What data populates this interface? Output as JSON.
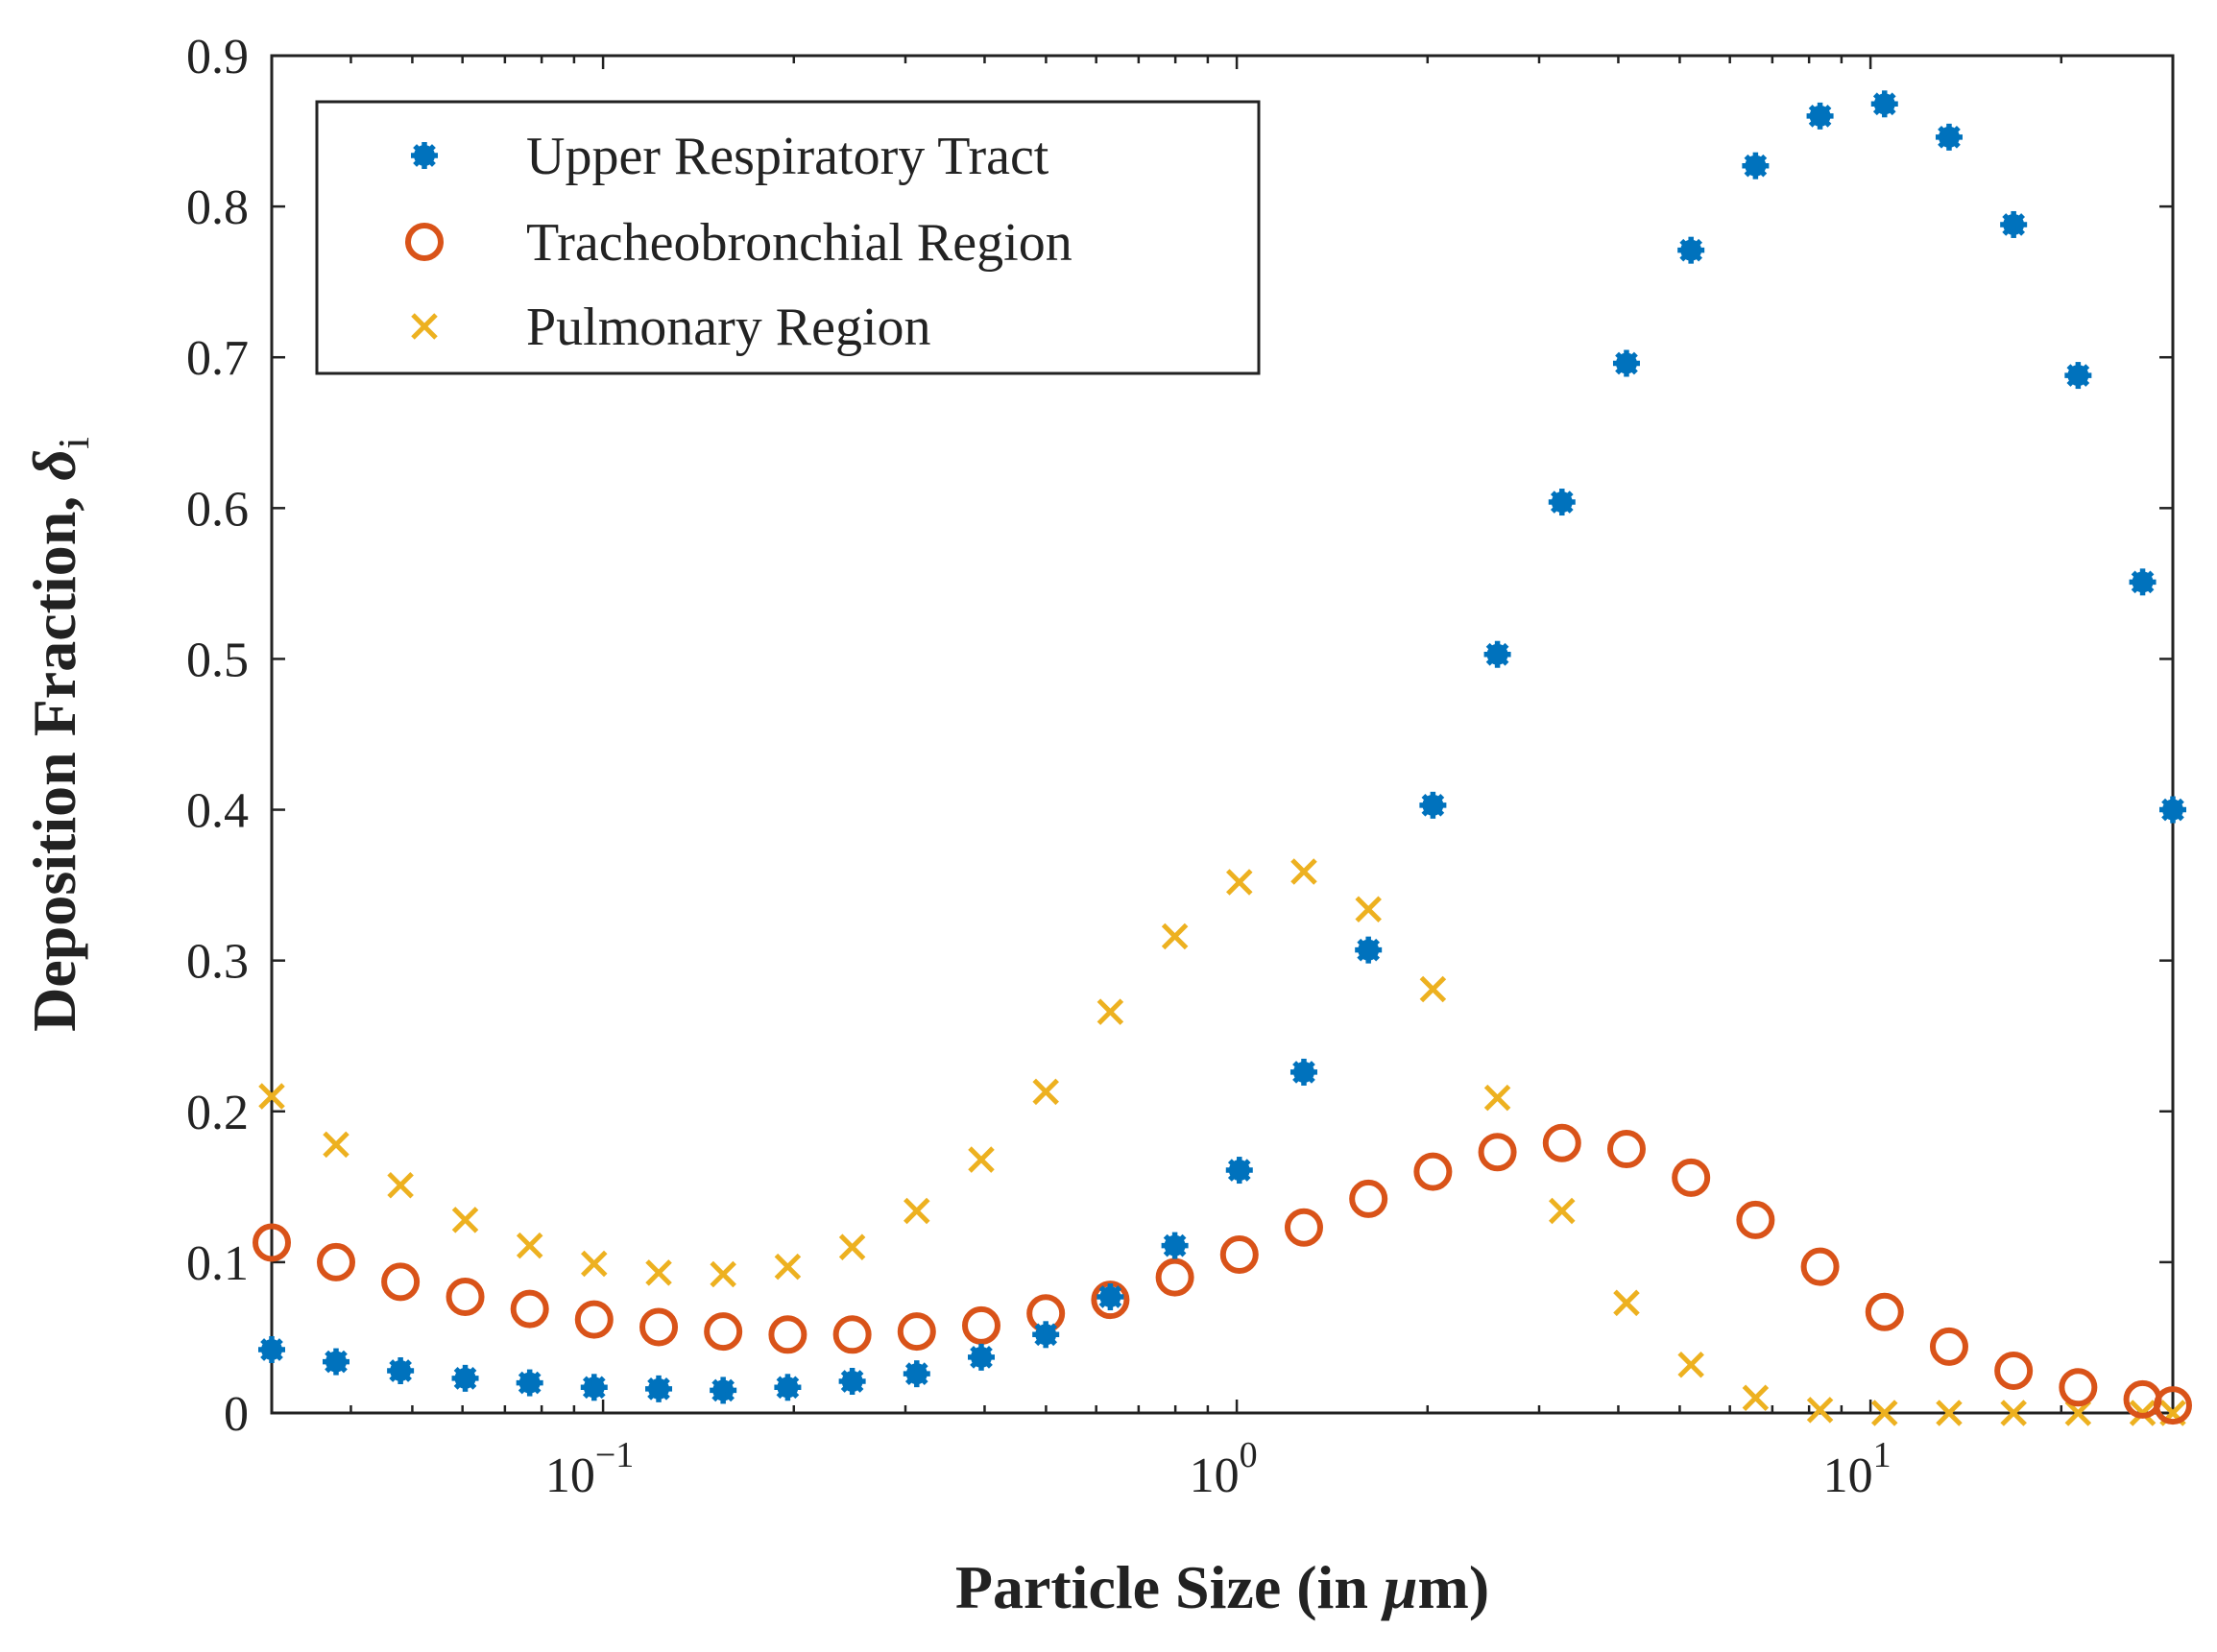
{
  "chart_data": {
    "type": "scatter",
    "xscale": "log",
    "xlim": [
      0.03,
      30
    ],
    "ylim": [
      0,
      0.9
    ],
    "xlabel": {
      "prefix": "Particle Size (in ",
      "mu": "μ",
      "suffix": "m)"
    },
    "ylabel": {
      "main": "Deposition Fraction, ",
      "symbol": "δ",
      "sub": "i"
    },
    "yticks": [
      {
        "value": 0,
        "label": "0"
      },
      {
        "value": 0.1,
        "label": "0.1"
      },
      {
        "value": 0.2,
        "label": "0.2"
      },
      {
        "value": 0.3,
        "label": "0.3"
      },
      {
        "value": 0.4,
        "label": "0.4"
      },
      {
        "value": 0.5,
        "label": "0.5"
      },
      {
        "value": 0.6,
        "label": "0.6"
      },
      {
        "value": 0.7,
        "label": "0.7"
      },
      {
        "value": 0.8,
        "label": "0.8"
      },
      {
        "value": 0.9,
        "label": "0.9"
      }
    ],
    "xticks": [
      {
        "value": 0.1,
        "base": "10",
        "exp": "−1"
      },
      {
        "value": 1,
        "base": "10",
        "exp": "0"
      },
      {
        "value": 10,
        "base": "10",
        "exp": "1"
      }
    ],
    "x": [
      0.03,
      0.0379,
      0.0479,
      0.0606,
      0.0766,
      0.0968,
      0.1224,
      0.1547,
      0.1956,
      0.2473,
      0.3126,
      0.3952,
      0.4996,
      0.6316,
      0.7985,
      1.0094,
      1.2761,
      1.6133,
      2.0395,
      2.5783,
      3.2595,
      4.1207,
      5.2094,
      6.5857,
      8.3256,
      10.525,
      13.306,
      16.821,
      21.265,
      26.883,
      30
    ],
    "series": [
      {
        "name": "Upper Respiratory Tract",
        "marker": "asterisk",
        "color": "#0072BD",
        "values": [
          0.042,
          0.034,
          0.028,
          0.023,
          0.02,
          0.017,
          0.016,
          0.015,
          0.017,
          0.021,
          0.026,
          0.037,
          0.052,
          0.077,
          0.111,
          0.161,
          0.226,
          0.307,
          0.403,
          0.503,
          0.604,
          0.696,
          0.771,
          0.827,
          0.86,
          0.868,
          0.846,
          0.788,
          0.688,
          0.551,
          0.4
        ]
      },
      {
        "name": "Tracheobronchial Region",
        "marker": "circle",
        "color": "#D95319",
        "values": [
          0.113,
          0.1,
          0.087,
          0.077,
          0.069,
          0.062,
          0.057,
          0.054,
          0.052,
          0.052,
          0.054,
          0.058,
          0.066,
          0.075,
          0.09,
          0.105,
          0.123,
          0.142,
          0.16,
          0.173,
          0.179,
          0.175,
          0.156,
          0.128,
          0.097,
          0.067,
          0.044,
          0.028,
          0.017,
          0.009,
          0.005
        ]
      },
      {
        "name": "Pulmonary Region",
        "marker": "x",
        "color": "#EDB120",
        "values": [
          0.21,
          0.178,
          0.151,
          0.128,
          0.111,
          0.099,
          0.093,
          0.092,
          0.097,
          0.11,
          0.134,
          0.168,
          0.213,
          0.266,
          0.316,
          0.352,
          0.359,
          0.334,
          0.281,
          0.209,
          0.134,
          0.073,
          0.032,
          0.01,
          0.002,
          0.0,
          0.0,
          0.0,
          0.0,
          0.0,
          0.0
        ]
      }
    ],
    "legend_position": "top-left"
  }
}
